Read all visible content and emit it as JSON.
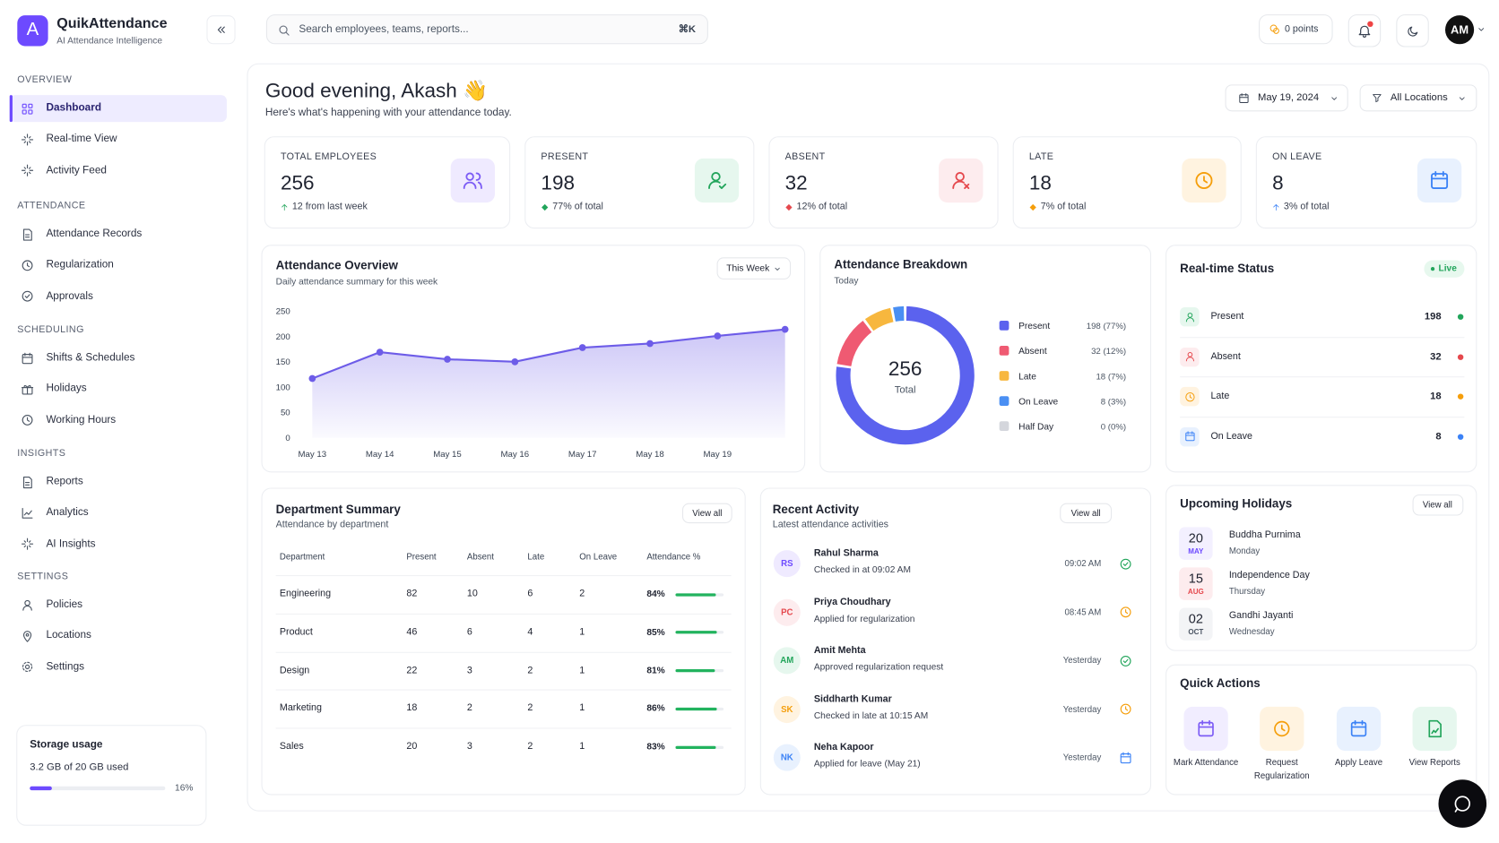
{
  "sidebar": {
    "brand": "QuikAttendance",
    "tagline": "AI Attendance Intelligence",
    "logo": "A",
    "sections": [
      {
        "title": "OVERVIEW",
        "items": [
          "Dashboard",
          "Real-time View",
          "Activity Feed"
        ]
      },
      {
        "title": "ATTENDANCE",
        "items": [
          "Attendance Records",
          "Regularization",
          "Approvals"
        ]
      },
      {
        "title": "SCHEDULING",
        "items": [
          "Shifts & Schedules",
          "Holidays",
          "Working Hours"
        ]
      },
      {
        "title": "INSIGHTS",
        "items": [
          "Reports",
          "Analytics",
          "AI Insights"
        ]
      },
      {
        "title": "SETTINGS",
        "items": [
          "Policies",
          "Locations",
          "Settings"
        ]
      }
    ],
    "storage": {
      "title": "Storage usage",
      "text": "3.2 GB of 20 GB used",
      "percent": 16,
      "percent_label": "16%"
    }
  },
  "topbar": {
    "search_placeholder": "Search employees, teams, reports...",
    "shortcut": "⌘K",
    "points": "0 points",
    "avatar": "AM"
  },
  "header": {
    "greeting": "Good evening, Akash 👋",
    "subtitle": "Here's what's happening with your attendance today.",
    "date": "May 19, 2024",
    "location": "All Locations"
  },
  "stats": [
    {
      "label": "TOTAL EMPLOYEES",
      "value": 256,
      "note": "12 from last week"
    },
    {
      "label": "PRESENT",
      "value": 198,
      "note": "77% of total"
    },
    {
      "label": "ABSENT",
      "value": 32,
      "note": "12% of total"
    },
    {
      "label": "LATE",
      "value": 18,
      "note": "7% of total"
    },
    {
      "label": "ON LEAVE",
      "value": 8,
      "note": "3% of total"
    }
  ],
  "overview_range": "This Week",
  "chart_data": [
    {
      "type": "line",
      "title": "Attendance Overview",
      "subtitle": "Daily attendance summary for this week",
      "categories": [
        "May 13",
        "May 14",
        "May 15",
        "May 16",
        "May 17",
        "May 18",
        "May 19",
        null
      ],
      "values": [
        117,
        169,
        155,
        150,
        178,
        186,
        201,
        214
      ],
      "color": "#6d5ce8",
      "ylim": [
        0,
        250
      ],
      "yticks": [
        0,
        50,
        100,
        150,
        200,
        250
      ],
      "grid": false
    },
    {
      "type": "pie",
      "title": "Attendance Breakdown",
      "subtitle": "Today",
      "total": 256,
      "total_label": "Total",
      "categories": [
        "Present",
        "Absent",
        "Late",
        "On Leave",
        "Half Day"
      ],
      "values": [
        198,
        32,
        18,
        8,
        0
      ],
      "value_labels": [
        "198 (77%)",
        "32 (12%)",
        "18 (7%)",
        "8 (3%)",
        "0 (0%)"
      ],
      "colors": [
        "#5b62ee",
        "#ef5a72",
        "#f7b73e",
        "#4a8ff3",
        "#d4d6dc"
      ]
    }
  ],
  "realtime": {
    "title": "Real-time Status",
    "badge": "Live",
    "rows": [
      {
        "name": "Present",
        "value": 198
      },
      {
        "name": "Absent",
        "value": 32
      },
      {
        "name": "Late",
        "value": 18
      },
      {
        "name": "On Leave",
        "value": 8
      }
    ]
  },
  "departments": {
    "title": "Department Summary",
    "subtitle": "Attendance by department",
    "action": "View all",
    "columns": [
      "Department",
      "Present",
      "Absent",
      "Late",
      "On Leave",
      "Attendance %"
    ],
    "rows": [
      {
        "name": "Engineering",
        "present": 82,
        "absent": 10,
        "late": 6,
        "on_leave": 2,
        "attendance": 84,
        "attendance_label": "84%"
      },
      {
        "name": "Product",
        "present": 46,
        "absent": 6,
        "late": 4,
        "on_leave": 1,
        "attendance": 85,
        "attendance_label": "85%"
      },
      {
        "name": "Design",
        "present": 22,
        "absent": 3,
        "late": 2,
        "on_leave": 1,
        "attendance": 81,
        "attendance_label": "81%"
      },
      {
        "name": "Marketing",
        "present": 18,
        "absent": 2,
        "late": 2,
        "on_leave": 1,
        "attendance": 86,
        "attendance_label": "86%"
      },
      {
        "name": "Sales",
        "present": 20,
        "absent": 3,
        "late": 2,
        "on_leave": 1,
        "attendance": 83,
        "attendance_label": "83%"
      }
    ]
  },
  "activity": {
    "title": "Recent Activity",
    "subtitle": "Latest attendance activities",
    "action": "View all",
    "items": [
      {
        "initials": "RS",
        "name": "Rahul Sharma",
        "text": "Checked in at 09:02 AM",
        "time": "09:02 AM"
      },
      {
        "initials": "PC",
        "name": "Priya Choudhary",
        "text": "Applied for regularization",
        "time": "08:45 AM"
      },
      {
        "initials": "AM",
        "name": "Amit Mehta",
        "text": "Approved regularization request",
        "time": "Yesterday"
      },
      {
        "initials": "SK",
        "name": "Siddharth Kumar",
        "text": "Checked in late at 10:15 AM",
        "time": "Yesterday"
      },
      {
        "initials": "NK",
        "name": "Neha Kapoor",
        "text": "Applied for leave (May 21)",
        "time": "Yesterday"
      }
    ]
  },
  "holidays": {
    "title": "Upcoming Holidays",
    "action": "View all",
    "items": [
      {
        "day": "20",
        "month": "MAY",
        "name": "Buddha Purnima",
        "weekday": "Monday"
      },
      {
        "day": "15",
        "month": "AUG",
        "name": "Independence Day",
        "weekday": "Thursday"
      },
      {
        "day": "02",
        "month": "OCT",
        "name": "Gandhi Jayanti",
        "weekday": "Wednesday"
      }
    ]
  },
  "quick_actions": {
    "title": "Quick Actions",
    "items": [
      "Mark Attendance",
      "Request Regularization",
      "Apply Leave",
      "View Reports"
    ]
  }
}
